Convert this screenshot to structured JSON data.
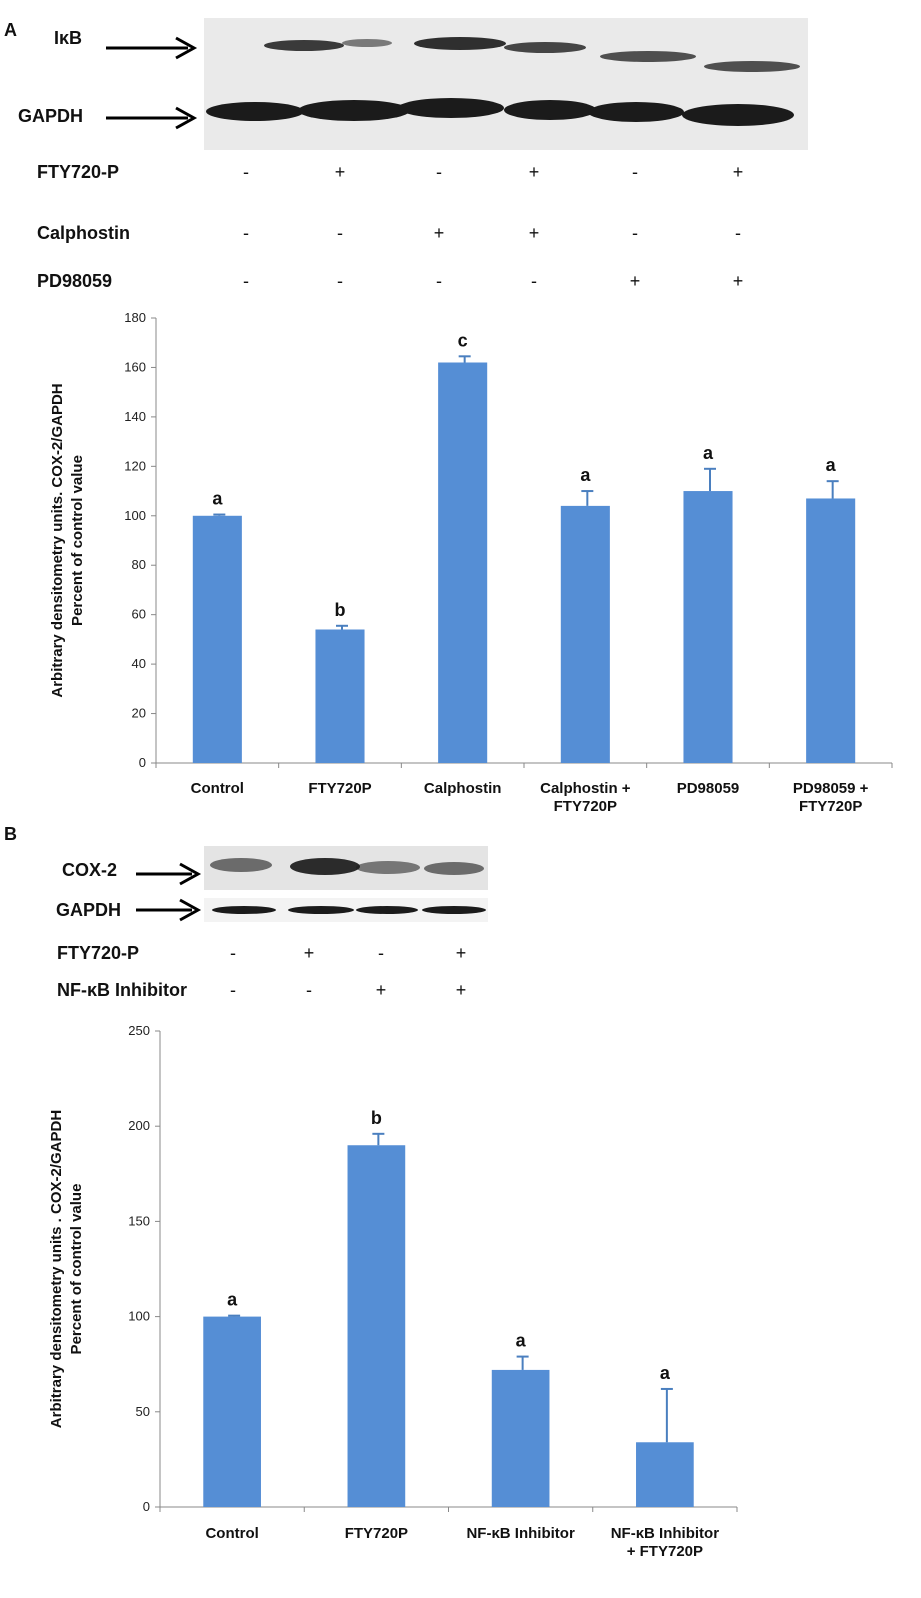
{
  "panelA": {
    "letter": "A",
    "blot_labels": [
      "IκB",
      "GAPDH"
    ],
    "treatments": [
      {
        "name": "FTY720-P",
        "signs": [
          "-",
          "+",
          "-",
          "+",
          "-",
          "+"
        ]
      },
      {
        "name": "Calphostin",
        "signs": [
          "-",
          "-",
          "+",
          "+",
          "-",
          "-"
        ]
      },
      {
        "name": "PD98059",
        "signs": [
          "-",
          "-",
          "-",
          "-",
          "+",
          "+"
        ]
      }
    ]
  },
  "panelB": {
    "letter": "B",
    "blot_labels": [
      "COX-2",
      "GAPDH"
    ],
    "treatments": [
      {
        "name": "FTY720-P",
        "signs": [
          "-",
          "+",
          "-",
          "+"
        ]
      },
      {
        "name": "NF-κB Inhibitor",
        "signs": [
          "-",
          "-",
          "+",
          "+"
        ]
      }
    ]
  },
  "chart_data": [
    {
      "type": "bar",
      "categories": [
        "Control",
        "FTY720P",
        "Calphostin",
        "Calphostin + FTY720P",
        "PD98059",
        "PD98059 + FTY720P"
      ],
      "category_lines": [
        [
          "Control"
        ],
        [
          "FTY720P"
        ],
        [
          "Calphostin"
        ],
        [
          "Calphostin +",
          "FTY720P"
        ],
        [
          "PD98059"
        ],
        [
          "PD98059 +",
          "FTY720P"
        ]
      ],
      "values": [
        100,
        54,
        162,
        104,
        110,
        107
      ],
      "errors": [
        0.5,
        1.5,
        2.5,
        6,
        9,
        7
      ],
      "significance": [
        "a",
        "b",
        "c",
        "a",
        "a",
        "a"
      ],
      "ylabel_lines": [
        "Arbitrary densitometry units. COX-2/GAPDH",
        "Percent of control value"
      ],
      "ylim": [
        0,
        180
      ],
      "yticks": [
        0,
        20,
        40,
        60,
        80,
        100,
        120,
        140,
        160,
        180
      ],
      "bar_color": "#558ed5",
      "grid": false
    },
    {
      "type": "bar",
      "categories": [
        "Control",
        "FTY720P",
        "NF-κB Inhibitor",
        "NF-κB Inhibitor + FTY720P"
      ],
      "category_lines": [
        [
          "Control"
        ],
        [
          "FTY720P"
        ],
        [
          "NF-κB Inhibitor"
        ],
        [
          "NF-κB Inhibitor",
          "+ FTY720P"
        ]
      ],
      "values": [
        100,
        190,
        72,
        34
      ],
      "errors": [
        0.5,
        6,
        7,
        28
      ],
      "significance": [
        "a",
        "b",
        "a",
        "a"
      ],
      "ylabel_lines": [
        "Arbitrary densitometry units . COX-2/GAPDH",
        "Percent of control value"
      ],
      "ylim": [
        0,
        250
      ],
      "yticks": [
        0,
        50,
        100,
        150,
        200,
        250
      ],
      "bar_color": "#558ed5",
      "grid": false
    }
  ]
}
